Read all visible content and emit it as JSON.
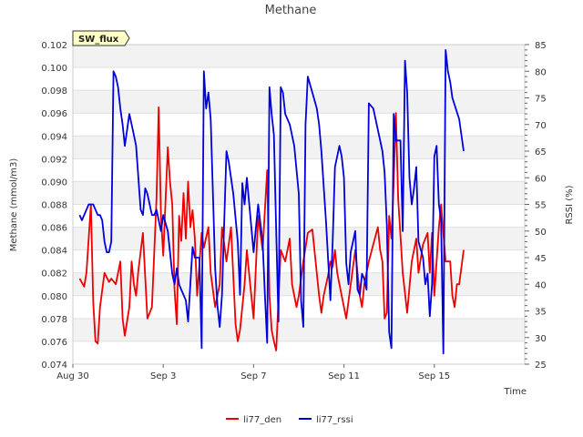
{
  "chart_data": {
    "type": "line",
    "title": "Methane",
    "xlabel": "Time",
    "ylabel": "Methane (mmol/m3)",
    "y2label": "RSSI (%)",
    "badge": "SW_flux",
    "x_range_days": [
      0,
      20
    ],
    "ylim": [
      0.074,
      0.102
    ],
    "y2lim": [
      25,
      85
    ],
    "x_ticks": [
      {
        "day": 0,
        "label": "Aug 30"
      },
      {
        "day": 4,
        "label": "Sep 3"
      },
      {
        "day": 8,
        "label": "Sep 7"
      },
      {
        "day": 12,
        "label": "Sep 11"
      },
      {
        "day": 16,
        "label": "Sep 15"
      }
    ],
    "y_ticks": [
      0.074,
      0.076,
      0.078,
      0.08,
      0.082,
      0.084,
      0.086,
      0.088,
      0.09,
      0.092,
      0.094,
      0.096,
      0.098,
      0.1,
      0.102
    ],
    "y_tick_labels": [
      "0.074",
      "0.076",
      "0.078",
      "0.080",
      "0.082",
      "0.084",
      "0.086",
      "0.088",
      "0.090",
      "0.092",
      "0.094",
      "0.096",
      "0.098",
      "0.100",
      "0.102"
    ],
    "y2_ticks": [
      25,
      30,
      35,
      40,
      45,
      50,
      55,
      60,
      65,
      70,
      75,
      80,
      85
    ],
    "y2_tick_labels": [
      "25",
      "30",
      "35",
      "40",
      "45",
      "50",
      "55",
      "60",
      "65",
      "70",
      "75",
      "80",
      "85"
    ],
    "grid": true,
    "legend": "bottom-center",
    "series": [
      {
        "name": "li77_den",
        "color": "#ee0000",
        "axis": "left",
        "x": [
          0.3,
          0.5,
          0.6,
          0.8,
          0.9,
          1.0,
          1.1,
          1.2,
          1.4,
          1.6,
          1.7,
          1.9,
          2.1,
          2.2,
          2.3,
          2.5,
          2.6,
          2.7,
          2.8,
          2.9,
          3.1,
          3.3,
          3.5,
          3.7,
          3.8,
          3.9,
          4.0,
          4.2,
          4.3,
          4.4,
          4.5,
          4.6,
          4.7,
          4.8,
          4.9,
          5.0,
          5.1,
          5.2,
          5.3,
          5.4,
          5.5,
          5.7,
          5.8,
          6.0,
          6.1,
          6.3,
          6.5,
          6.6,
          6.8,
          7.0,
          7.2,
          7.3,
          7.4,
          7.6,
          7.7,
          7.8,
          8.0,
          8.2,
          8.4,
          8.6,
          8.7,
          8.8,
          8.9,
          9.0,
          9.2,
          9.4,
          9.6,
          9.7,
          9.9,
          10.0,
          10.2,
          10.4,
          10.6,
          10.9,
          11.0,
          11.1,
          11.3,
          11.4,
          11.5,
          11.6,
          11.7,
          11.8,
          11.9,
          12.1,
          12.3,
          12.5,
          12.7,
          12.8,
          12.9,
          13.1,
          13.3,
          13.5,
          13.6,
          13.7,
          13.8,
          13.9,
          14.0,
          14.1,
          14.2,
          14.3,
          14.4,
          14.6,
          14.8,
          15.0,
          15.2,
          15.3,
          15.5,
          15.7,
          15.8,
          15.9,
          16.0,
          16.1,
          16.2,
          16.3,
          16.5,
          16.7,
          16.8,
          16.9,
          17.0,
          17.1,
          17.3
        ],
        "values": [
          0.0815,
          0.0808,
          0.082,
          0.088,
          0.0795,
          0.076,
          0.0758,
          0.079,
          0.082,
          0.0812,
          0.0815,
          0.081,
          0.083,
          0.078,
          0.0765,
          0.079,
          0.083,
          0.081,
          0.08,
          0.0822,
          0.0855,
          0.078,
          0.079,
          0.0885,
          0.0965,
          0.087,
          0.0835,
          0.093,
          0.09,
          0.088,
          0.0805,
          0.0775,
          0.087,
          0.0848,
          0.089,
          0.085,
          0.09,
          0.086,
          0.0875,
          0.085,
          0.08,
          0.0855,
          0.0842,
          0.086,
          0.082,
          0.079,
          0.081,
          0.086,
          0.083,
          0.086,
          0.0775,
          0.076,
          0.077,
          0.081,
          0.084,
          0.082,
          0.078,
          0.087,
          0.084,
          0.091,
          0.08,
          0.077,
          0.076,
          0.0752,
          0.084,
          0.083,
          0.085,
          0.081,
          0.079,
          0.08,
          0.083,
          0.0855,
          0.0858,
          0.08,
          0.0785,
          0.08,
          0.0818,
          0.083,
          0.0825,
          0.084,
          0.082,
          0.081,
          0.08,
          0.078,
          0.081,
          0.084,
          0.08,
          0.079,
          0.081,
          0.083,
          0.0845,
          0.086,
          0.084,
          0.083,
          0.078,
          0.0785,
          0.087,
          0.085,
          0.09,
          0.096,
          0.0885,
          0.082,
          0.0785,
          0.083,
          0.085,
          0.082,
          0.0845,
          0.0855,
          0.082,
          0.0855,
          0.08,
          0.083,
          0.086,
          0.088,
          0.083,
          0.083,
          0.08,
          0.079,
          0.081,
          0.081,
          0.084
        ]
      },
      {
        "name": "li77_rssi",
        "color": "#0000dd",
        "axis": "right",
        "x": [
          0.3,
          0.4,
          0.5,
          0.7,
          0.9,
          1.0,
          1.1,
          1.2,
          1.3,
          1.4,
          1.5,
          1.6,
          1.7,
          1.8,
          1.9,
          2.0,
          2.1,
          2.2,
          2.3,
          2.5,
          2.7,
          2.8,
          2.9,
          3.0,
          3.1,
          3.2,
          3.3,
          3.5,
          3.6,
          3.7,
          3.9,
          4.0,
          4.2,
          4.4,
          4.5,
          4.6,
          4.7,
          4.8,
          5.0,
          5.1,
          5.3,
          5.4,
          5.5,
          5.6,
          5.7,
          5.8,
          5.9,
          6.0,
          6.1,
          6.3,
          6.4,
          6.5,
          6.6,
          6.7,
          6.8,
          6.9,
          7.1,
          7.3,
          7.4,
          7.5,
          7.6,
          7.7,
          8.0,
          8.2,
          8.4,
          8.5,
          8.6,
          8.7,
          8.8,
          8.9,
          9.0,
          9.1,
          9.2,
          9.3,
          9.4,
          9.6,
          9.8,
          10.0,
          10.1,
          10.2,
          10.3,
          10.4,
          10.6,
          10.8,
          10.9,
          11.0,
          11.2,
          11.4,
          11.5,
          11.6,
          11.8,
          11.9,
          12.0,
          12.1,
          12.2,
          12.3,
          12.5,
          12.6,
          12.7,
          12.8,
          12.9,
          13.0,
          13.1,
          13.3,
          13.5,
          13.7,
          13.8,
          13.9,
          14.0,
          14.1,
          14.2,
          14.3,
          14.5,
          14.6,
          14.7,
          14.8,
          14.9,
          15.0,
          15.1,
          15.2,
          15.3,
          15.5,
          15.6,
          15.7,
          15.8,
          15.9,
          16.0,
          16.1,
          16.2,
          16.3,
          16.4,
          16.5,
          16.6,
          16.7,
          16.8,
          17.1,
          17.3
        ],
        "values": [
          53,
          52,
          53,
          55,
          55,
          54,
          53,
          53,
          52,
          48,
          46,
          46,
          48,
          80,
          79,
          77,
          73,
          70,
          66,
          72,
          68,
          66,
          60,
          54,
          53,
          58,
          57,
          53,
          53,
          54,
          50,
          53,
          50,
          42,
          40,
          43,
          40,
          39,
          37,
          33,
          47,
          45,
          45,
          45,
          28,
          80,
          73,
          76,
          71,
          43,
          36,
          32,
          38,
          52,
          65,
          63,
          57,
          48,
          38,
          59,
          55,
          60,
          46,
          55,
          48,
          38,
          29,
          77,
          72,
          68,
          50,
          33,
          77,
          76,
          72,
          70,
          66,
          57,
          37,
          32,
          70,
          79,
          76,
          73,
          70,
          65,
          52,
          37,
          48,
          62,
          66,
          64,
          60,
          44,
          40,
          46,
          50,
          39,
          38,
          42,
          41,
          39,
          74,
          73,
          69,
          65,
          61,
          51,
          31,
          28,
          72,
          67,
          67,
          50,
          82,
          76,
          60,
          55,
          58,
          62,
          48,
          45,
          40,
          42,
          34,
          40,
          64,
          66,
          55,
          52,
          27,
          84,
          80,
          78,
          75,
          71,
          65
        ]
      }
    ]
  }
}
